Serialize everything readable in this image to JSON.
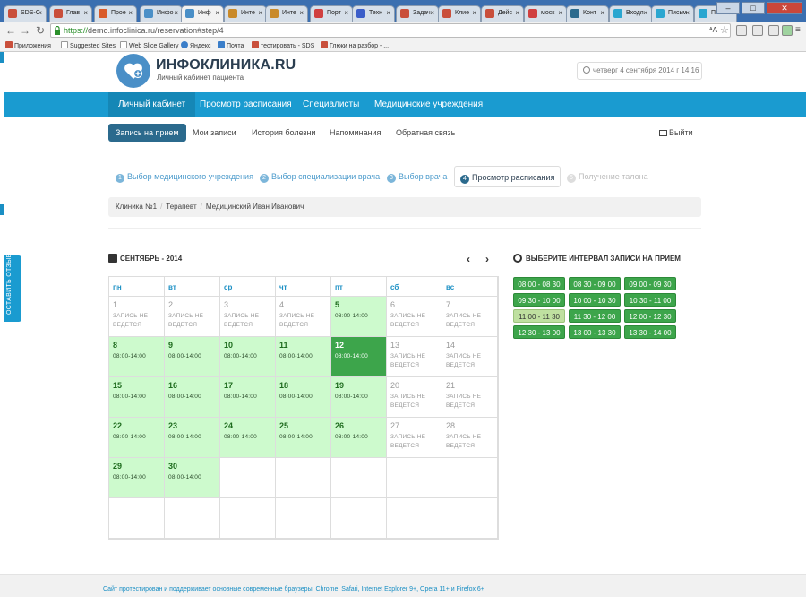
{
  "browser": {
    "tabs": [
      {
        "label": "SDS-C",
        "color": "#c94f3b"
      },
      {
        "label": "Глав",
        "color": "#c94f3b"
      },
      {
        "label": "Прое",
        "color": "#d95b2a"
      },
      {
        "label": "Инфо",
        "color": "#4a8fc7"
      },
      {
        "label": "Инф",
        "color": "#4a8fc7",
        "active": true
      },
      {
        "label": "Инте",
        "color": "#c98a2a"
      },
      {
        "label": "Инте",
        "color": "#c98a2a"
      },
      {
        "label": "Порт",
        "color": "#d04040"
      },
      {
        "label": "Техн",
        "color": "#3b5ec9"
      },
      {
        "label": "Задач",
        "color": "#c94f3b"
      },
      {
        "label": "Клие",
        "color": "#c94f3b"
      },
      {
        "label": "Дейс",
        "color": "#c94f3b"
      },
      {
        "label": "моск",
        "color": "#d04040"
      },
      {
        "label": "Конт",
        "color": "#2b6a8d"
      },
      {
        "label": "Входя",
        "color": "#2aa6d0"
      },
      {
        "label": "Письм",
        "color": "#2aa6d0"
      },
      {
        "label": "Письм",
        "color": "#2aa6d0"
      }
    ],
    "url_https": "https://",
    "url_rest": "demo.infoclinica.ru/reservation#step/4",
    "bookmarks": [
      "Приложения",
      "Suggested Sites",
      "Web Slice Gallery",
      "Яндекс",
      "Почта",
      "тестировать - SDS",
      "Глюки на разбор - ..."
    ]
  },
  "header": {
    "logo_title": "ИНФОКЛИНИКА.RU",
    "logo_subtitle": "Личный кабинет пациента",
    "datetime": "четверг 4 сентября 2014 г 14:16"
  },
  "mainnav": [
    "Личный кабинет",
    "Просмотр расписания",
    "Специалисты",
    "Медицинские учреждения"
  ],
  "subnav": [
    "Запись на прием",
    "Мои записи",
    "История болезни",
    "Напоминания",
    "Обратная связь"
  ],
  "logout": "Выйти",
  "feedback": "ОСТАВИТЬ ОТЗЫВ",
  "steps": [
    {
      "num": "1",
      "label": "Выбор медицинского учреждения"
    },
    {
      "num": "2",
      "label": "Выбор специализации врача"
    },
    {
      "num": "3",
      "label": "Выбор врача"
    },
    {
      "num": "4",
      "label": "Просмотр расписания"
    },
    {
      "num": "5",
      "label": "Получение талона"
    }
  ],
  "breadcrumb": [
    "Клиника №1",
    "Терапевт",
    "Медицинский Иван Иванович"
  ],
  "calendar": {
    "title": "СЕНТЯБРЬ - 2014",
    "weekdays": [
      "пн",
      "вт",
      "ср",
      "чт",
      "пт",
      "сб",
      "вс"
    ],
    "closed_text": "ЗАПИСЬ НЕ ВЕДЕТСЯ",
    "open_text": "08:00-14:00",
    "weeks": [
      [
        {
          "d": "1",
          "s": "off"
        },
        {
          "d": "2",
          "s": "off"
        },
        {
          "d": "3",
          "s": "off"
        },
        {
          "d": "4",
          "s": "off"
        },
        {
          "d": "5",
          "s": "on"
        },
        {
          "d": "6",
          "s": "off"
        },
        {
          "d": "7",
          "s": "off"
        }
      ],
      [
        {
          "d": "8",
          "s": "on"
        },
        {
          "d": "9",
          "s": "on"
        },
        {
          "d": "10",
          "s": "on"
        },
        {
          "d": "11",
          "s": "on"
        },
        {
          "d": "12",
          "s": "sel"
        },
        {
          "d": "13",
          "s": "off"
        },
        {
          "d": "14",
          "s": "off"
        }
      ],
      [
        {
          "d": "15",
          "s": "on"
        },
        {
          "d": "16",
          "s": "on"
        },
        {
          "d": "17",
          "s": "on"
        },
        {
          "d": "18",
          "s": "on"
        },
        {
          "d": "19",
          "s": "on"
        },
        {
          "d": "20",
          "s": "off"
        },
        {
          "d": "21",
          "s": "off"
        }
      ],
      [
        {
          "d": "22",
          "s": "on"
        },
        {
          "d": "23",
          "s": "on"
        },
        {
          "d": "24",
          "s": "on"
        },
        {
          "d": "25",
          "s": "on"
        },
        {
          "d": "26",
          "s": "on"
        },
        {
          "d": "27",
          "s": "off"
        },
        {
          "d": "28",
          "s": "off"
        }
      ],
      [
        {
          "d": "29",
          "s": "on"
        },
        {
          "d": "30",
          "s": "on"
        },
        {
          "d": "",
          "s": "empty"
        },
        {
          "d": "",
          "s": "empty"
        },
        {
          "d": "",
          "s": "empty"
        },
        {
          "d": "",
          "s": "empty"
        },
        {
          "d": "",
          "s": "empty"
        }
      ],
      [
        {
          "d": "",
          "s": "empty"
        },
        {
          "d": "",
          "s": "empty"
        },
        {
          "d": "",
          "s": "empty"
        },
        {
          "d": "",
          "s": "empty"
        },
        {
          "d": "",
          "s": "empty"
        },
        {
          "d": "",
          "s": "empty"
        },
        {
          "d": "",
          "s": "empty"
        }
      ]
    ]
  },
  "intervals": {
    "title": "ВЫБЕРИТЕ ИНТЕРВАЛ ЗАПИСИ НА ПРИЕМ",
    "slots": [
      {
        "label": "08 00 - 08 30",
        "selected": false
      },
      {
        "label": "08 30 - 09 00",
        "selected": false
      },
      {
        "label": "09 00 - 09 30",
        "selected": false
      },
      {
        "label": "09 30 - 10 00",
        "selected": false
      },
      {
        "label": "10 00 - 10 30",
        "selected": false
      },
      {
        "label": "10 30 - 11 00",
        "selected": false
      },
      {
        "label": "11 00 - 11 30",
        "selected": true
      },
      {
        "label": "11 30 - 12 00",
        "selected": false
      },
      {
        "label": "12 00 - 12 30",
        "selected": false
      },
      {
        "label": "12 30 - 13 00",
        "selected": false
      },
      {
        "label": "13 00 - 13 30",
        "selected": false
      },
      {
        "label": "13 30 - 14 00",
        "selected": false
      }
    ]
  },
  "footer": "Сайт протестирован и поддерживает основные современные браузеры: Chrome, Safari, Internet Explorer 9+, Opera 11+ и Firefox 6+",
  "colors": {
    "nav": "#1a9bd0",
    "available": "#cdfacd",
    "selected": "#3da54b"
  }
}
